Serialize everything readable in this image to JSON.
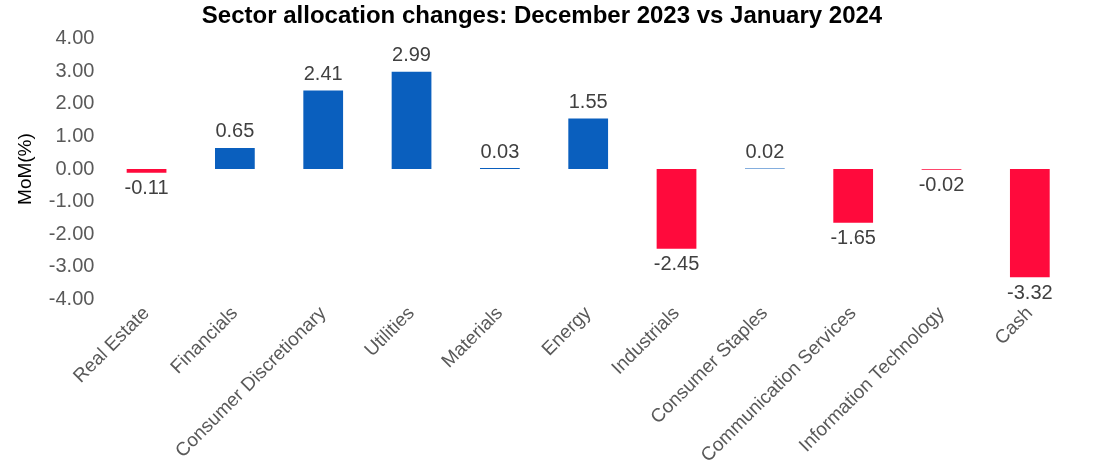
{
  "chart_data": {
    "type": "bar",
    "title": "Sector allocation changes: December 2023 vs January 2024",
    "ylabel": "MoM(%)",
    "categories": [
      "Real Estate",
      "Financials",
      "Consumer Discretionary",
      "Utilities",
      "Materials",
      "Energy",
      "Industrials",
      "Consumer Staples",
      "Communication Services",
      "Information Technology",
      "Cash"
    ],
    "values": [
      -0.11,
      0.65,
      2.41,
      2.99,
      0.03,
      1.55,
      -2.45,
      0.02,
      -1.65,
      -0.02,
      -3.32
    ],
    "colors": [
      "#ff0a3c",
      "#0a5fbe",
      "#0a5fbe",
      "#0a5fbe",
      "#0a5fbe",
      "#0a5fbe",
      "#ff0a3c",
      "#0a5fbe",
      "#ff0a3c",
      "#ff0a3c",
      "#ff0a3c"
    ],
    "value_labels": [
      "-0.11",
      "0.65",
      "2.41",
      "2.99",
      "0.03",
      "1.55",
      "-2.45",
      "0.02",
      "-1.65",
      "-0.02",
      "-3.32"
    ],
    "ylim": [
      -4,
      4
    ],
    "yticks": [
      {
        "value": -4,
        "label": "-4.00"
      },
      {
        "value": -3,
        "label": "-3.00"
      },
      {
        "value": -2,
        "label": "-2.00"
      },
      {
        "value": -1,
        "label": "-1.00"
      },
      {
        "value": 0,
        "label": "0.00"
      },
      {
        "value": 1,
        "label": "1.00"
      },
      {
        "value": 2,
        "label": "2.00"
      },
      {
        "value": 3,
        "label": "3.00"
      },
      {
        "value": 4,
        "label": "4.00"
      }
    ],
    "grid": false,
    "legend": false
  }
}
